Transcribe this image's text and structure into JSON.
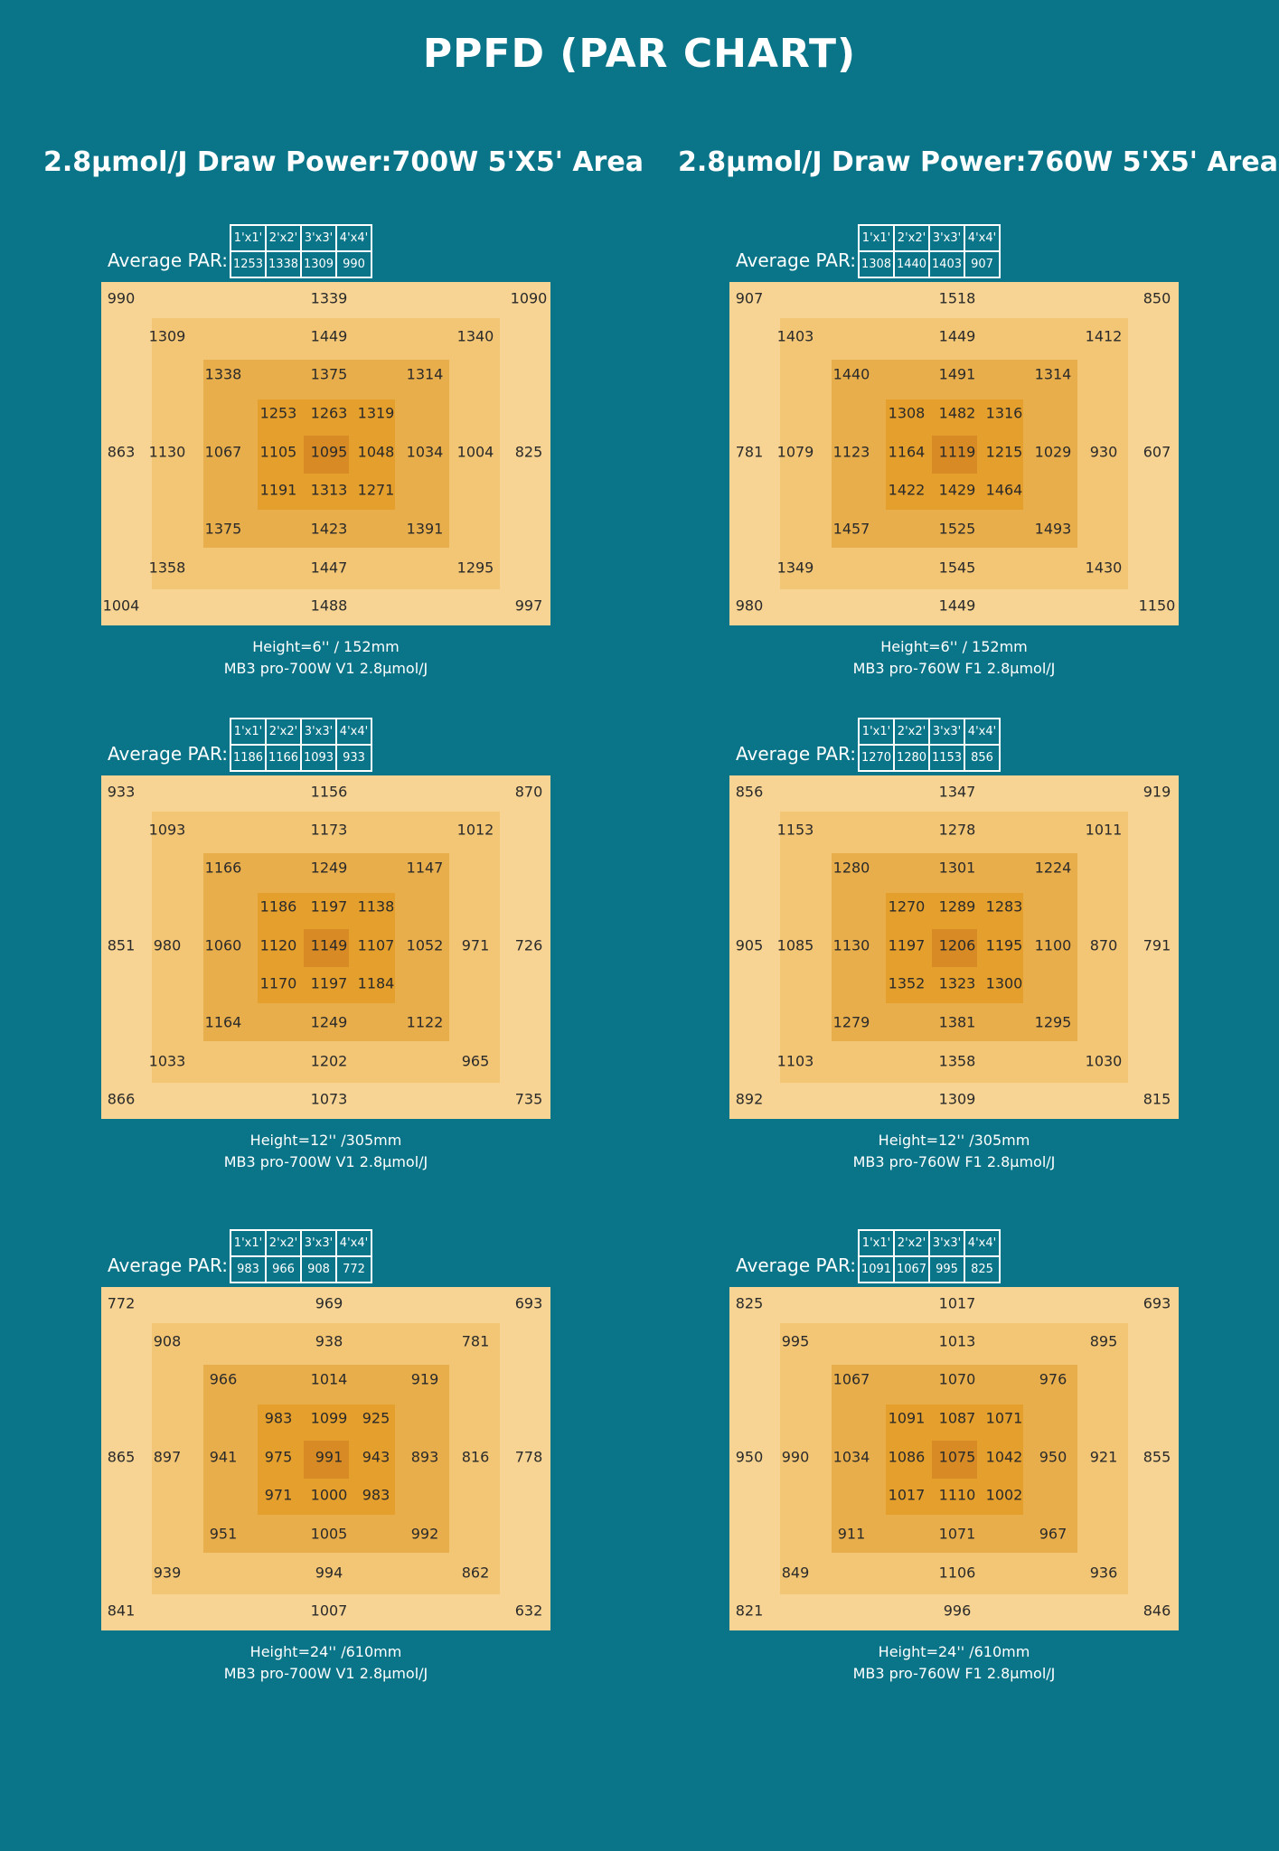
{
  "title": "PPFD (PAR CHART)",
  "columns": [
    {
      "title": "2.8µmol/J  Draw Power:700W 5'X5' Area"
    },
    {
      "title": "2.8µmol/J  Draw Power:760W 5'X5' Area"
    }
  ],
  "avg_par_label": "Average PAR:",
  "area_headers": [
    "1'x1'",
    "2'x2'",
    "3'x3'",
    "4'x4'"
  ],
  "chart_data": [
    {
      "type": "heatmap",
      "title": "",
      "caption": [
        "Height=6'' / 152mm",
        "MB3 pro-700W   V1  2.8µmol/J"
      ],
      "average_par": [
        1253,
        1338,
        1309,
        990
      ],
      "rows": [
        [
          "990",
          "",
          "",
          "",
          "",
          "1339",
          "",
          "",
          "",
          "",
          "1090"
        ],
        [
          "",
          "1309",
          "",
          "",
          "",
          "1449",
          "",
          "",
          "",
          "1340",
          ""
        ],
        [
          "",
          "",
          "1338",
          "",
          "",
          "1375",
          "",
          "",
          "1314",
          "",
          ""
        ],
        [
          "",
          "",
          "",
          "1253",
          "",
          "1263",
          "",
          "1319",
          "",
          "",
          ""
        ],
        [
          "863",
          "1130",
          "1067",
          "1105",
          "",
          "1095",
          "",
          "1048",
          "1034",
          "1004",
          "825"
        ],
        [
          "",
          "",
          "",
          "1191",
          "",
          "1313",
          "",
          "1271",
          "",
          "",
          ""
        ],
        [
          "",
          "",
          "1375",
          "",
          "",
          "1423",
          "",
          "",
          "1391",
          "",
          ""
        ],
        [
          "",
          "1358",
          "",
          "",
          "",
          "1447",
          "",
          "",
          "",
          "1295",
          ""
        ],
        [
          "1004",
          "",
          "",
          "",
          "",
          "1488",
          "",
          "",
          "",
          "",
          "997"
        ]
      ]
    },
    {
      "type": "heatmap",
      "title": "",
      "caption": [
        "Height=6'' / 152mm",
        "MB3 pro-760W   F1  2.8µmol/J"
      ],
      "average_par": [
        1308,
        1440,
        1403,
        907
      ],
      "rows": [
        [
          "907",
          "",
          "",
          "",
          "",
          "1518",
          "",
          "",
          "",
          "",
          "850"
        ],
        [
          "",
          "1403",
          "",
          "",
          "",
          "1449",
          "",
          "",
          "",
          "1412",
          ""
        ],
        [
          "",
          "",
          "1440",
          "",
          "",
          "1491",
          "",
          "",
          "1314",
          "",
          ""
        ],
        [
          "",
          "",
          "",
          "1308",
          "",
          "1482",
          "",
          "1316",
          "",
          "",
          ""
        ],
        [
          "781",
          "1079",
          "1123",
          "1164",
          "",
          "1119",
          "",
          "1215",
          "1029",
          "930",
          "607"
        ],
        [
          "",
          "",
          "",
          "1422",
          "",
          "1429",
          "",
          "1464",
          "",
          "",
          ""
        ],
        [
          "",
          "",
          "1457",
          "",
          "",
          "1525",
          "",
          "",
          "1493",
          "",
          ""
        ],
        [
          "",
          "1349",
          "",
          "",
          "",
          "1545",
          "",
          "",
          "",
          "1430",
          ""
        ],
        [
          "980",
          "",
          "",
          "",
          "",
          "1449",
          "",
          "",
          "",
          "",
          "1150"
        ]
      ]
    },
    {
      "type": "heatmap",
      "title": "",
      "caption": [
        "Height=12'' /305mm",
        "MB3 pro-700W   V1  2.8µmol/J"
      ],
      "average_par": [
        1186,
        1166,
        1093,
        933
      ],
      "rows": [
        [
          "933",
          "",
          "",
          "",
          "",
          "1156",
          "",
          "",
          "",
          "",
          "870"
        ],
        [
          "",
          "1093",
          "",
          "",
          "",
          "1173",
          "",
          "",
          "",
          "1012",
          ""
        ],
        [
          "",
          "",
          "1166",
          "",
          "",
          "1249",
          "",
          "",
          "1147",
          "",
          ""
        ],
        [
          "",
          "",
          "",
          "1186",
          "",
          "1197",
          "",
          "1138",
          "",
          "",
          ""
        ],
        [
          "851",
          "980",
          "1060",
          "1120",
          "",
          "1149",
          "",
          "1107",
          "1052",
          "971",
          "726"
        ],
        [
          "",
          "",
          "",
          "1170",
          "",
          "1197",
          "",
          "1184",
          "",
          "",
          ""
        ],
        [
          "",
          "",
          "1164",
          "",
          "",
          "1249",
          "",
          "",
          "1122",
          "",
          ""
        ],
        [
          "",
          "1033",
          "",
          "",
          "",
          "1202",
          "",
          "",
          "",
          "965",
          ""
        ],
        [
          "866",
          "",
          "",
          "",
          "",
          "1073",
          "",
          "",
          "",
          "",
          "735"
        ]
      ]
    },
    {
      "type": "heatmap",
      "title": "",
      "caption": [
        "Height=12'' /305mm",
        "MB3 pro-760W   F1  2.8µmol/J"
      ],
      "average_par": [
        1270,
        1280,
        1153,
        856
      ],
      "rows": [
        [
          "856",
          "",
          "",
          "",
          "",
          "1347",
          "",
          "",
          "",
          "",
          "919"
        ],
        [
          "",
          "1153",
          "",
          "",
          "",
          "1278",
          "",
          "",
          "",
          "1011",
          ""
        ],
        [
          "",
          "",
          "1280",
          "",
          "",
          "1301",
          "",
          "",
          "1224",
          "",
          ""
        ],
        [
          "",
          "",
          "",
          "1270",
          "",
          "1289",
          "",
          "1283",
          "",
          "",
          ""
        ],
        [
          "905",
          "1085",
          "1130",
          "1197",
          "",
          "1206",
          "",
          "1195",
          "1100",
          "870",
          "791"
        ],
        [
          "",
          "",
          "",
          "1352",
          "",
          "1323",
          "",
          "1300",
          "",
          "",
          ""
        ],
        [
          "",
          "",
          "1279",
          "",
          "",
          "1381",
          "",
          "",
          "1295",
          "",
          ""
        ],
        [
          "",
          "1103",
          "",
          "",
          "",
          "1358",
          "",
          "",
          "",
          "1030",
          ""
        ],
        [
          "892",
          "",
          "",
          "",
          "",
          "1309",
          "",
          "",
          "",
          "",
          "815"
        ]
      ]
    },
    {
      "type": "heatmap",
      "title": "",
      "caption": [
        "Height=24'' /610mm",
        "MB3 pro-700W   V1  2.8µmol/J"
      ],
      "average_par": [
        983,
        966,
        908,
        772
      ],
      "rows": [
        [
          "772",
          "",
          "",
          "",
          "",
          "969",
          "",
          "",
          "",
          "",
          "693"
        ],
        [
          "",
          "908",
          "",
          "",
          "",
          "938",
          "",
          "",
          "",
          "781",
          ""
        ],
        [
          "",
          "",
          "966",
          "",
          "",
          "1014",
          "",
          "",
          "919",
          "",
          ""
        ],
        [
          "",
          "",
          "",
          "983",
          "",
          "1099",
          "",
          "925",
          "",
          "",
          ""
        ],
        [
          "865",
          "897",
          "941",
          "975",
          "",
          "991",
          "",
          "943",
          "893",
          "816",
          "778"
        ],
        [
          "",
          "",
          "",
          "971",
          "",
          "1000",
          "",
          "983",
          "",
          "",
          ""
        ],
        [
          "",
          "",
          "951",
          "",
          "",
          "1005",
          "",
          "",
          "992",
          "",
          ""
        ],
        [
          "",
          "939",
          "",
          "",
          "",
          "994",
          "",
          "",
          "",
          "862",
          ""
        ],
        [
          "841",
          "",
          "",
          "",
          "",
          "1007",
          "",
          "",
          "",
          "",
          "632"
        ]
      ]
    },
    {
      "type": "heatmap",
      "title": "",
      "caption": [
        "Height=24'' /610mm",
        "MB3 pro-760W   F1  2.8µmol/J"
      ],
      "average_par": [
        1091,
        1067,
        995,
        825
      ],
      "rows": [
        [
          "825",
          "",
          "",
          "",
          "",
          "1017",
          "",
          "",
          "",
          "",
          "693"
        ],
        [
          "",
          "995",
          "",
          "",
          "",
          "1013",
          "",
          "",
          "",
          "895",
          ""
        ],
        [
          "",
          "",
          "1067",
          "",
          "",
          "1070",
          "",
          "",
          "976",
          "",
          ""
        ],
        [
          "",
          "",
          "",
          "1091",
          "",
          "1087",
          "",
          "1071",
          "",
          "",
          ""
        ],
        [
          "950",
          "990",
          "1034",
          "1086",
          "",
          "1075",
          "",
          "1042",
          "950",
          "921",
          "855"
        ],
        [
          "",
          "",
          "",
          "1017",
          "",
          "1110",
          "",
          "1002",
          "",
          "",
          ""
        ],
        [
          "",
          "",
          "911",
          "",
          "",
          "1071",
          "",
          "",
          "967",
          "",
          ""
        ],
        [
          "",
          "849",
          "",
          "",
          "",
          "1106",
          "",
          "",
          "",
          "936",
          ""
        ],
        [
          "821",
          "",
          "",
          "",
          "",
          "996",
          "",
          "",
          "",
          "",
          "846"
        ]
      ]
    }
  ]
}
